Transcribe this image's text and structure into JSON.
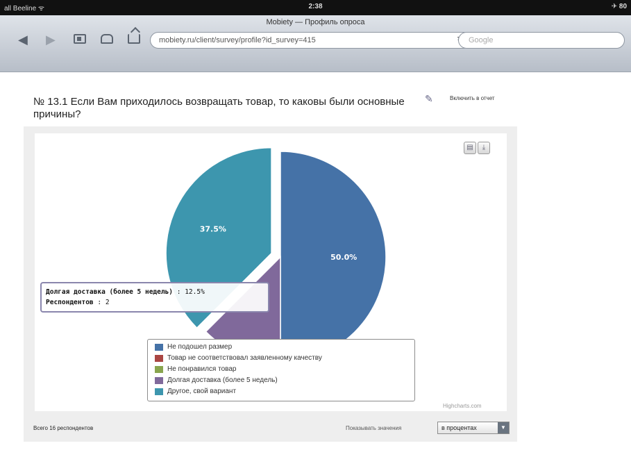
{
  "status_bar": {
    "carrier": "all Beeline ᯤ",
    "time": "2:38",
    "battery": "✈ 80"
  },
  "browser": {
    "page_title": "Mobiety — Профиль опроса",
    "url": "mobiety.ru/client/survey/profile?id_survey=415",
    "search_placeholder": "Google",
    "back_icon": "back-arrow-icon",
    "forward_icon": "forward-arrow-icon"
  },
  "question": {
    "title": "№ 13.1 Если Вам приходилось возвращать товар, то каковы были основные причины?",
    "report_link": "Включить в отчет"
  },
  "chart_data": {
    "type": "pie",
    "title": "",
    "series": [
      {
        "name": "Не подошел размер",
        "value": 50.0,
        "label": "50.0%",
        "color": "#4572a7"
      },
      {
        "name": "Товар не соответствовал заявленному качеству",
        "value": 0,
        "label": "",
        "color": "#aa4643"
      },
      {
        "name": "Не понравился товар",
        "value": 0,
        "label": "",
        "color": "#89a54e"
      },
      {
        "name": "Долгая доставка (более 5 недель)",
        "value": 12.5,
        "label": "",
        "color": "#80699b"
      },
      {
        "name": "Другое, свой вариант",
        "value": 37.5,
        "label": "37.5%",
        "color": "#3d96ae"
      }
    ],
    "sliced": "Другое, свой вариант",
    "legend_position": "bottom",
    "tooltip": {
      "series_name": "Долгая доставка (более 5 недель)",
      "percent": ": 12.5%",
      "respondents_label": "Респондентов",
      "respondents_value": ": 2"
    },
    "credits": "Highcharts.com"
  },
  "footer": {
    "total": "Всего 16 респондентов",
    "show_label": "Показывать значения",
    "show_value": "в процентах"
  }
}
